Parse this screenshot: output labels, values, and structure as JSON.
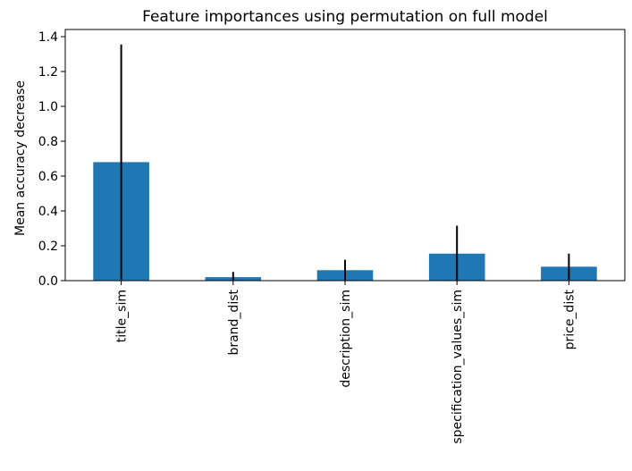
{
  "chart_data": {
    "type": "bar",
    "title": "Feature importances using permutation on full model",
    "xlabel": "",
    "ylabel": "Mean accuracy decrease",
    "categories": [
      "title_sim",
      "brand_dist",
      "description_sim",
      "specification_values_sim",
      "price_dist"
    ],
    "series": [
      {
        "values": [
          0.68,
          0.02,
          0.06,
          0.155,
          0.08
        ],
        "error": [
          0.675,
          0.03,
          0.06,
          0.16,
          0.075
        ]
      }
    ],
    "ylim": [
      0,
      1.4
    ],
    "yticks": [
      0.0,
      0.2,
      0.4,
      0.6,
      0.8,
      1.0,
      1.2,
      1.4
    ],
    "ytick_labels": [
      "0.0",
      "0.2",
      "0.4",
      "0.6",
      "0.8",
      "1.0",
      "1.2",
      "1.4"
    ],
    "grid": false,
    "legend": "none",
    "colors": {
      "bar": "#1f77b4",
      "error_bar": "#000000",
      "axes": "#000000",
      "background": "#ffffff"
    }
  }
}
